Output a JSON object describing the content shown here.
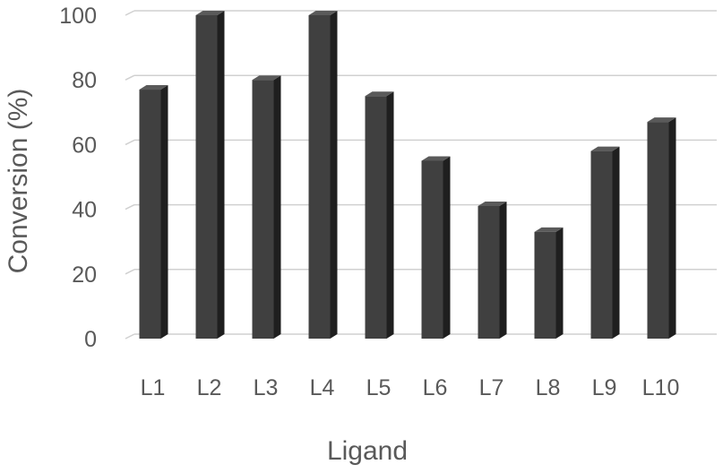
{
  "chart_data": {
    "type": "bar",
    "style": "3d-column",
    "categories": [
      "L1",
      "L2",
      "L3",
      "L4",
      "L5",
      "L6",
      "L7",
      "L8",
      "L9",
      "L10"
    ],
    "values": [
      77,
      100,
      80,
      100,
      75,
      55,
      41,
      33,
      58,
      67
    ],
    "title": "",
    "xlabel": "Ligand",
    "ylabel": "Conversion (%)",
    "ylim": [
      0,
      100
    ],
    "yticks": [
      0,
      20,
      40,
      60,
      80,
      100
    ],
    "grid": true,
    "legend": "none",
    "colors": {
      "bar_front": "#404040",
      "bar_side": "#1f1f1f",
      "bar_top": "#5a5a5a",
      "gridline": "#d0d0d0",
      "text": "#595959"
    }
  }
}
